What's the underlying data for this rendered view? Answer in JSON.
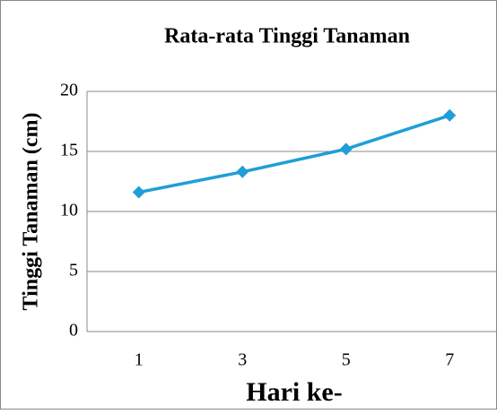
{
  "chart_data": {
    "type": "line",
    "title": "Rata-rata Tinggi Tanaman",
    "x_label": "Hari ke-",
    "y_label": "Tinggi Tanaman (cm)",
    "categories": [
      "1",
      "3",
      "5",
      "7"
    ],
    "series": [
      {
        "name": "Tinggi Tanaman",
        "color": "#1f9ed8",
        "values": [
          11.6,
          13.3,
          15.2,
          18.0
        ]
      }
    ],
    "ylim": [
      0,
      20
    ],
    "yticks": [
      0,
      5,
      10,
      15,
      20
    ],
    "grid": true
  }
}
